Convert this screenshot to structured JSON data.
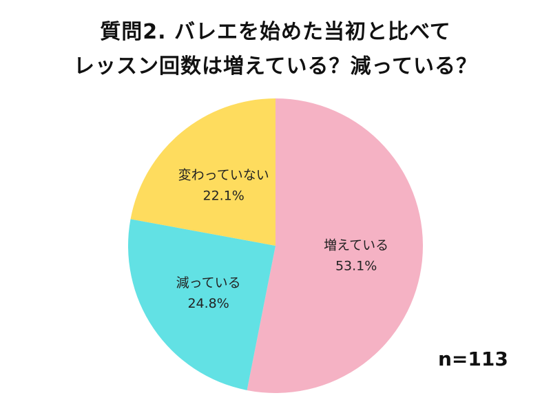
{
  "chart_data": {
    "type": "pie",
    "title_lines": [
      "質問2. バレエを始めた当初と比べて",
      "レッスン回数は増えている？減っている？"
    ],
    "slices": [
      {
        "label": "増えている",
        "value": 53.1,
        "value_label": "53.1%",
        "color": "#f5b2c4"
      },
      {
        "label": "減っている",
        "value": 24.8,
        "value_label": "24.8%",
        "color": "#62e1e4"
      },
      {
        "label": "変わっていない",
        "value": 22.1,
        "value_label": "22.1%",
        "color": "#fedc5e"
      }
    ],
    "start_angle_deg": 0,
    "direction": "clockwise",
    "sample_size": "n=113"
  }
}
